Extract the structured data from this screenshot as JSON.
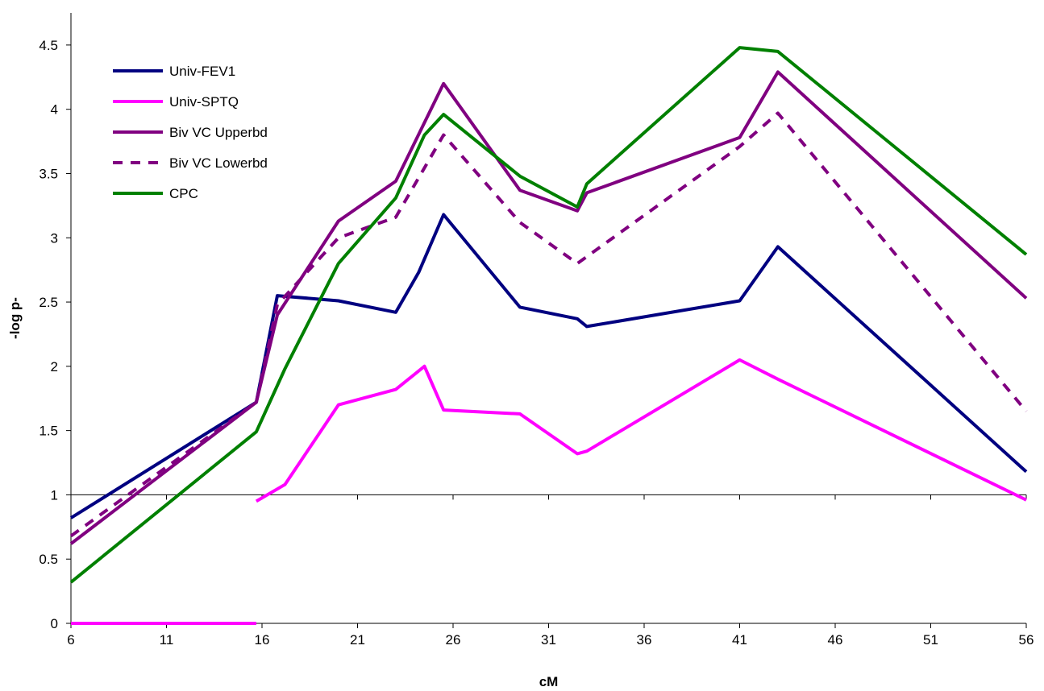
{
  "chart_data": {
    "type": "line",
    "title": "",
    "xlabel": "cM",
    "ylabel": "-log p-",
    "xlim": [
      6,
      56
    ],
    "ylim": [
      0,
      4.5
    ],
    "x_ticks": [
      6,
      11,
      16,
      21,
      26,
      31,
      36,
      41,
      46,
      51,
      56
    ],
    "y_ticks": [
      0,
      0.5,
      1,
      1.5,
      2,
      2.5,
      3,
      3.5,
      4,
      4.5
    ],
    "y_tick_labels": [
      "0",
      "0.5",
      "1",
      "1.5",
      "2",
      "2.5",
      "3",
      "3.5",
      "4",
      "4.5"
    ],
    "x_tick_labels": [
      "6",
      "11",
      "16",
      "21",
      "26",
      "31",
      "36",
      "41",
      "46",
      "51",
      "56"
    ],
    "baseline_y": 1,
    "grid": false,
    "legend_position": "top-left",
    "series": [
      {
        "name": "Univ-FEV1",
        "color": "#000080",
        "dash": "solid",
        "points": [
          [
            6,
            0.82
          ],
          [
            15.7,
            1.72
          ],
          [
            16.8,
            2.55
          ],
          [
            20,
            2.51
          ],
          [
            23,
            2.42
          ],
          [
            24.2,
            2.73
          ],
          [
            25.5,
            3.18
          ],
          [
            29.5,
            2.46
          ],
          [
            32.5,
            2.37
          ],
          [
            33,
            2.31
          ],
          [
            41,
            2.51
          ],
          [
            43,
            2.93
          ],
          [
            56,
            1.18
          ]
        ]
      },
      {
        "name": "Univ-SPTQ",
        "color": "#ff00ff",
        "dash": "solid",
        "segments": [
          [
            [
              6,
              0
            ],
            [
              15.7,
              0
            ]
          ],
          [
            [
              15.7,
              0.95
            ],
            [
              17.2,
              1.08
            ],
            [
              20,
              1.7
            ],
            [
              23,
              1.82
            ],
            [
              24.5,
              2.0
            ],
            [
              25.5,
              1.66
            ],
            [
              29.5,
              1.63
            ],
            [
              32.5,
              1.32
            ],
            [
              33,
              1.34
            ],
            [
              41,
              2.05
            ],
            [
              43,
              1.9
            ],
            [
              56,
              0.96
            ]
          ]
        ]
      },
      {
        "name": "Biv VC Upperbd",
        "color": "#800080",
        "dash": "solid",
        "points": [
          [
            6,
            0.62
          ],
          [
            15.7,
            1.72
          ],
          [
            16.8,
            2.4
          ],
          [
            20,
            3.13
          ],
          [
            23,
            3.44
          ],
          [
            25.5,
            4.2
          ],
          [
            29.5,
            3.37
          ],
          [
            32.5,
            3.21
          ],
          [
            33,
            3.35
          ],
          [
            41,
            3.78
          ],
          [
            43,
            4.29
          ],
          [
            56,
            2.53
          ]
        ]
      },
      {
        "name": "Biv VC Lowerbd",
        "color": "#800080",
        "dash": "dashed",
        "points": [
          [
            6,
            0.68
          ],
          [
            15.7,
            1.72
          ],
          [
            16.8,
            2.48
          ],
          [
            20,
            3.0
          ],
          [
            23,
            3.16
          ],
          [
            25.5,
            3.8
          ],
          [
            29.5,
            3.12
          ],
          [
            32.5,
            2.8
          ],
          [
            41,
            3.71
          ],
          [
            43,
            3.97
          ],
          [
            56,
            1.65
          ]
        ]
      },
      {
        "name": "CPC",
        "color": "#008000",
        "dash": "solid",
        "points": [
          [
            6,
            0.32
          ],
          [
            15.7,
            1.49
          ],
          [
            17.2,
            1.98
          ],
          [
            20,
            2.8
          ],
          [
            23,
            3.31
          ],
          [
            24.5,
            3.8
          ],
          [
            25.5,
            3.96
          ],
          [
            29.5,
            3.48
          ],
          [
            32.5,
            3.24
          ],
          [
            33,
            3.42
          ],
          [
            41,
            4.48
          ],
          [
            43,
            4.45
          ],
          [
            56,
            2.87
          ]
        ]
      }
    ]
  }
}
